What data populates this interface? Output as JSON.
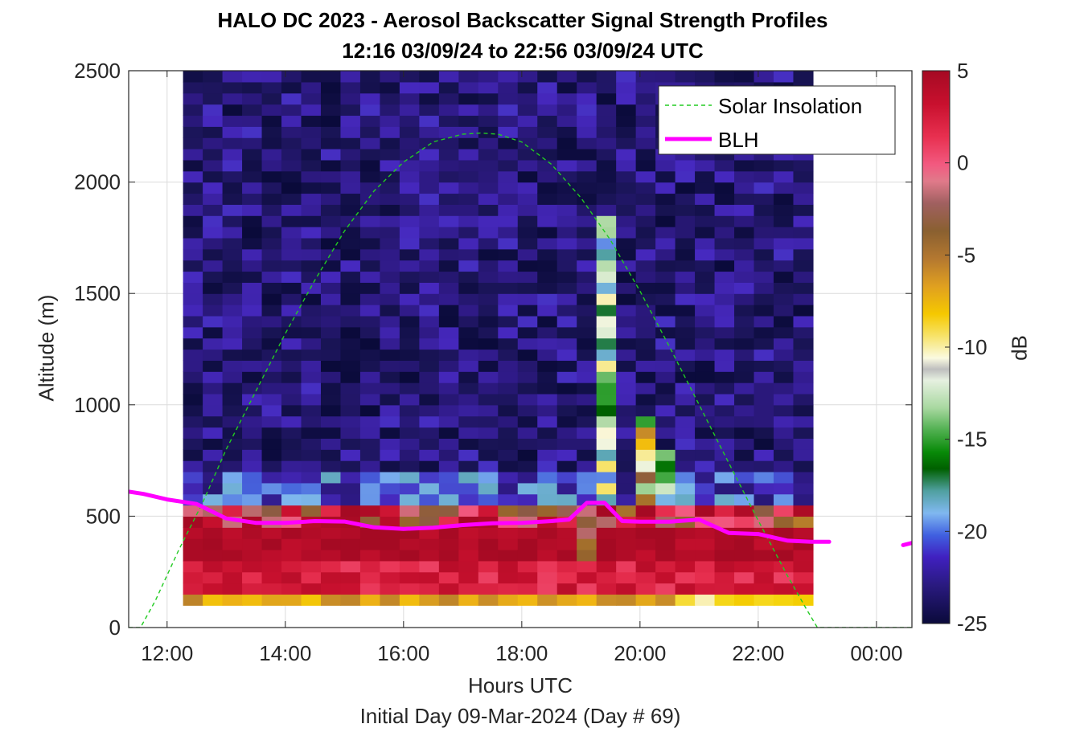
{
  "chart_data": {
    "type": "heatmap",
    "title": "HALO DC 2023 - Aerosol Backscatter Signal Strength Profiles",
    "subtitle": "12:16 03/09/24 to 22:56 03/09/24  UTC",
    "xlabel": "Hours UTC",
    "x_sublabel": "Initial Day 09-Mar-2024 (Day # 69)",
    "ylabel": "Altitude (m)",
    "colorbar_label": "dB",
    "xlim": [
      11.35,
      24.6
    ],
    "ylim": [
      0,
      2500
    ],
    "x_ticks": [
      12,
      14,
      16,
      18,
      20,
      22,
      24
    ],
    "x_tick_labels": [
      "12:00",
      "14:00",
      "16:00",
      "18:00",
      "20:00",
      "22:00",
      "00:00"
    ],
    "y_ticks": [
      0,
      500,
      1000,
      1500,
      2000,
      2500
    ],
    "y_tick_labels": [
      "0",
      "500",
      "1000",
      "1500",
      "2000",
      "2500"
    ],
    "clim": [
      -25,
      5
    ],
    "colorbar_ticks": [
      5,
      0,
      -5,
      -10,
      -15,
      -20,
      -25
    ],
    "colorbar_tick_labels": [
      "5",
      "0",
      "-5",
      "-10",
      "-15",
      "-20",
      "-25"
    ],
    "grid": true,
    "legend_position": "top-right",
    "data_time_range": [
      12.27,
      22.93
    ],
    "data_alt_range": [
      100,
      2500
    ],
    "cell_width_hours": 0.333,
    "cell_height_m": 50,
    "series": [
      {
        "name": "Solar Insolation",
        "type": "line",
        "style": "dashed",
        "color": "#22cc22",
        "x": [
          11.35,
          11.55,
          11.8,
          12.2,
          12.6,
          13.0,
          13.5,
          14.0,
          14.5,
          15.0,
          15.5,
          16.0,
          16.5,
          17.0,
          17.3,
          17.6,
          18.0,
          18.5,
          19.0,
          19.5,
          20.0,
          20.5,
          21.0,
          21.5,
          22.0,
          22.5,
          22.8,
          23.0,
          23.2,
          24.6
        ],
        "y": [
          0,
          0,
          120,
          350,
          560,
          800,
          1060,
          1320,
          1560,
          1780,
          1960,
          2090,
          2180,
          2215,
          2220,
          2215,
          2180,
          2080,
          1930,
          1740,
          1510,
          1260,
          1000,
          740,
          480,
          230,
          90,
          0,
          0,
          0
        ]
      },
      {
        "name": "BLH",
        "type": "line",
        "style": "solid",
        "color": "#ff00ff",
        "x": [
          11.35,
          11.6,
          12.0,
          12.5,
          13.0,
          13.5,
          14.0,
          14.5,
          15.0,
          15.5,
          16.0,
          16.5,
          17.0,
          17.5,
          18.0,
          18.5,
          18.8,
          19.1,
          19.4,
          19.7,
          20.0,
          20.5,
          21.0,
          21.5,
          22.0,
          22.5,
          22.9,
          23.2
        ],
        "y": [
          610,
          600,
          575,
          555,
          490,
          470,
          470,
          478,
          476,
          450,
          443,
          448,
          460,
          468,
          470,
          478,
          485,
          560,
          560,
          478,
          475,
          475,
          485,
          425,
          420,
          390,
          385,
          385
        ]
      },
      {
        "name": "",
        "type": "line",
        "style": "solid",
        "color": "#ff00ff",
        "x": [
          24.45,
          24.6
        ],
        "y": [
          370,
          380
        ]
      }
    ]
  }
}
